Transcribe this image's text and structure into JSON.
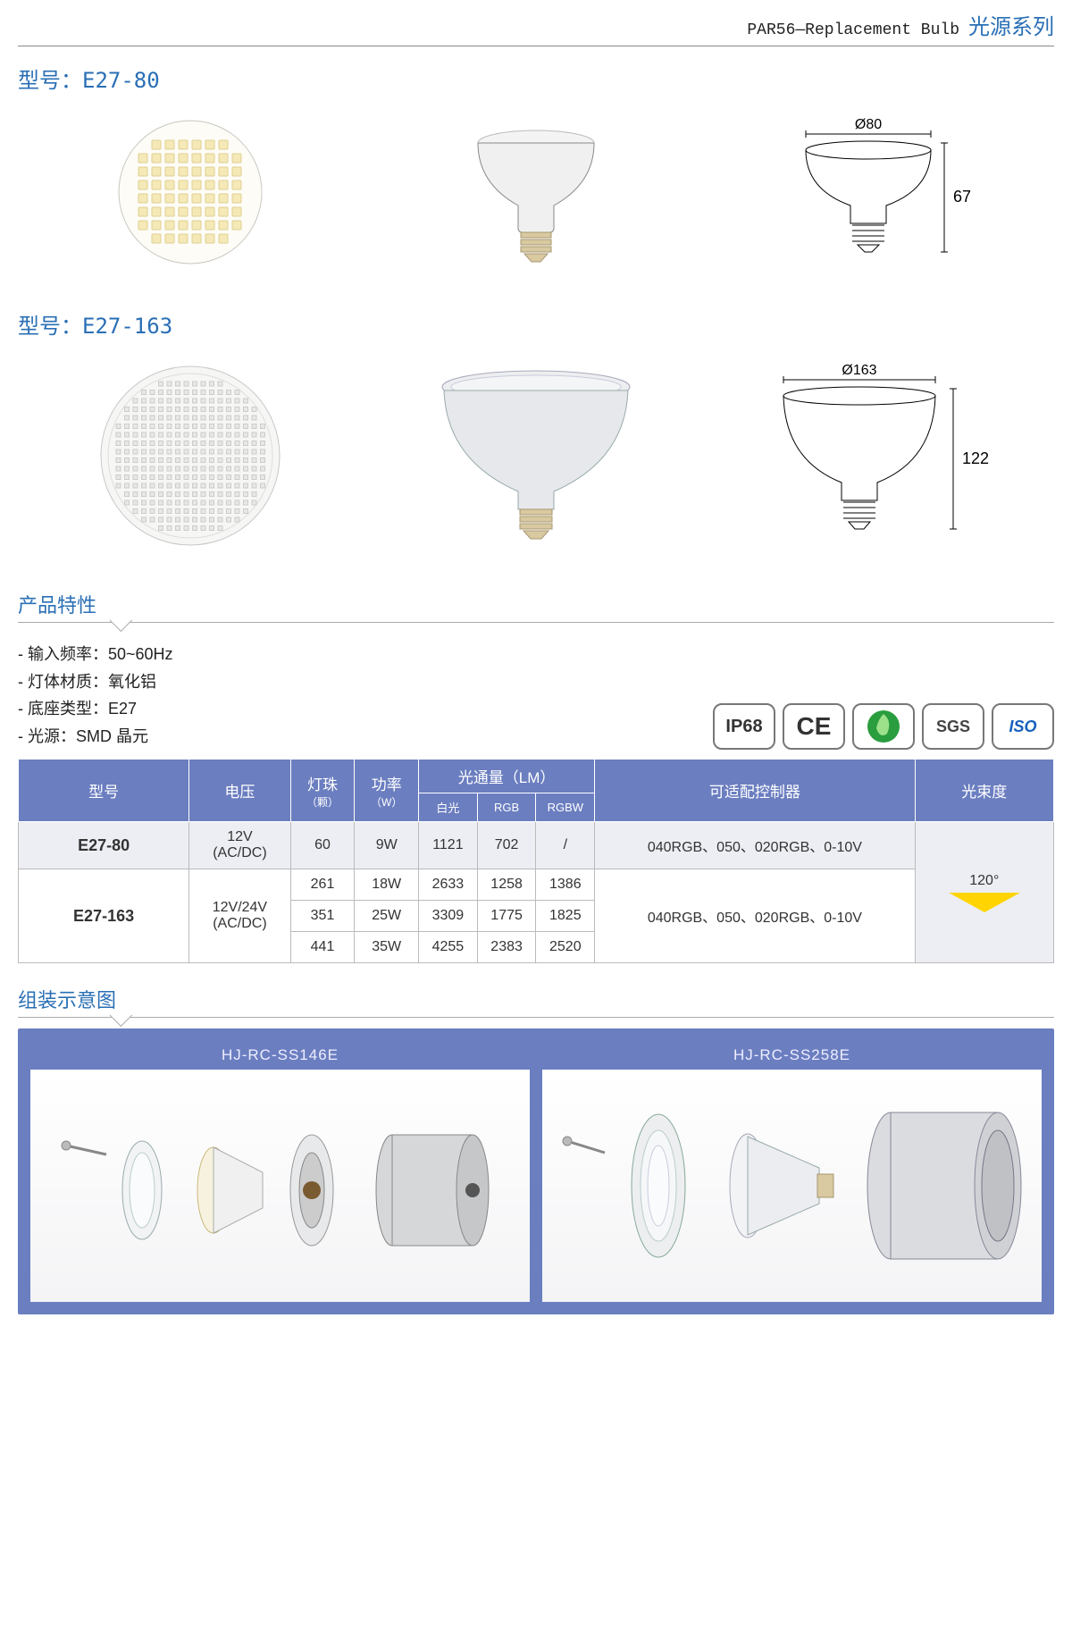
{
  "header": {
    "eng": "PAR56—Replacement Bulb",
    "chn": "光源系列"
  },
  "model1": {
    "label_prefix": "型号：",
    "name": "E27-80",
    "diameter_label": "Ø80",
    "height_label": "67"
  },
  "model2": {
    "label_prefix": "型号：",
    "name": "E27-163",
    "diameter_label": "Ø163",
    "height_label": "122"
  },
  "features_title": "产品特性",
  "features": [
    "- 输入频率：50~60Hz",
    "- 灯体材质：氧化铝",
    "- 底座类型：E27",
    "- 光源：SMD 晶元"
  ],
  "certs": {
    "ip": "IP68",
    "ce": "CE",
    "rohs": "RoHS",
    "sgs": "SGS",
    "iso": "ISO"
  },
  "table": {
    "headers": {
      "model": "型号",
      "voltage": "电压",
      "leds": "灯珠",
      "leds_sub": "（颗）",
      "power": "功率",
      "power_sub": "（W）",
      "lumen": "光通量（LM）",
      "lumen_white": "白光",
      "lumen_rgb": "RGB",
      "lumen_rgbw": "RGBW",
      "controller": "可适配控制器",
      "beam": "光束度"
    },
    "row1": {
      "model": "E27-80",
      "voltage": "12V\n(AC/DC)",
      "leds": "60",
      "power": "9W",
      "white": "1121",
      "rgb": "702",
      "rgbw": "/",
      "ctrl": "040RGB、050、020RGB、0-10V"
    },
    "row2": {
      "model": "E27-163",
      "voltage": "12V/24V\n(AC/DC)",
      "r": [
        {
          "leds": "261",
          "power": "18W",
          "white": "2633",
          "rgb": "1258",
          "rgbw": "1386"
        },
        {
          "leds": "351",
          "power": "25W",
          "white": "3309",
          "rgb": "1775",
          "rgbw": "1825"
        },
        {
          "leds": "441",
          "power": "35W",
          "white": "4255",
          "rgb": "2383",
          "rgbw": "2520"
        }
      ],
      "ctrl": "040RGB、050、020RGB、0-10V"
    },
    "beam_value": "120°"
  },
  "assembly_title": "组装示意图",
  "assembly": {
    "left": "HJ-RC-SS146E",
    "right": "HJ-RC-SS258E"
  },
  "colors": {
    "accent": "#2a6fb5",
    "table_header": "#6b7ec0",
    "beam_yellow": "#ffd400"
  }
}
